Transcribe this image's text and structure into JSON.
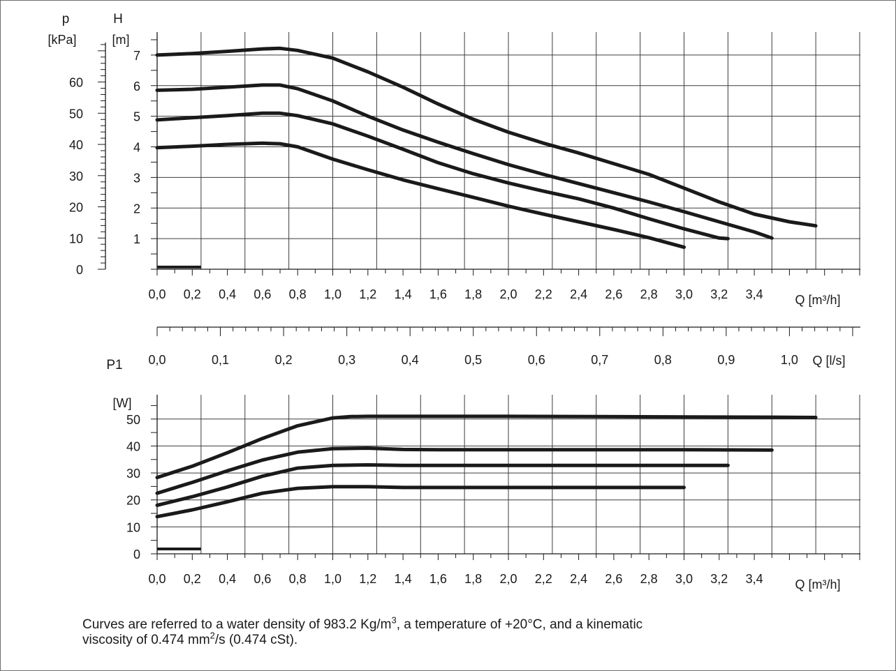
{
  "chart_data": [
    {
      "type": "line",
      "title": "",
      "left_axis_label": "p",
      "left_axis_unit": "[kPa]",
      "ylabel": "H",
      "ylabel_unit": "[m]",
      "xlabel": "Q [m³/h]",
      "xlim": [
        0,
        4.0
      ],
      "ylim": [
        0,
        7.75
      ],
      "p_lim": [
        0,
        76
      ],
      "x_ticks": [
        "0,0",
        "0,2",
        "0,4",
        "0,6",
        "0,8",
        "1,0",
        "1,2",
        "1,4",
        "1,6",
        "1,8",
        "2,0",
        "2,2",
        "2,4",
        "2,6",
        "2,8",
        "3,0",
        "3,2",
        "3,4"
      ],
      "y_ticks": [
        "1",
        "2",
        "3",
        "4",
        "5",
        "6",
        "7"
      ],
      "p_ticks": [
        "0",
        "10",
        "20",
        "30",
        "40",
        "50",
        "60"
      ],
      "grid": true,
      "series": [
        {
          "x": [
            0,
            0.2,
            0.4,
            0.6,
            0.7,
            0.8,
            1.0,
            1.2,
            1.4,
            1.6,
            1.8,
            2.0,
            2.2,
            2.4,
            2.6,
            2.8,
            3.0,
            3.2,
            3.4,
            3.6,
            3.75
          ],
          "values": [
            7.0,
            7.05,
            7.12,
            7.2,
            7.22,
            7.15,
            6.9,
            6.45,
            5.95,
            5.4,
            4.9,
            4.48,
            4.12,
            3.8,
            3.45,
            3.1,
            2.65,
            2.2,
            1.8,
            1.55,
            1.42
          ]
        },
        {
          "x": [
            0,
            0.2,
            0.4,
            0.6,
            0.7,
            0.8,
            1.0,
            1.2,
            1.4,
            1.6,
            1.8,
            2.0,
            2.2,
            2.4,
            2.6,
            2.8,
            3.0,
            3.2,
            3.4,
            3.5
          ],
          "values": [
            5.85,
            5.88,
            5.95,
            6.02,
            6.02,
            5.9,
            5.5,
            5.0,
            4.55,
            4.15,
            3.78,
            3.42,
            3.1,
            2.8,
            2.5,
            2.2,
            1.88,
            1.55,
            1.22,
            1.02
          ]
        },
        {
          "x": [
            0,
            0.2,
            0.4,
            0.6,
            0.7,
            0.8,
            1.0,
            1.2,
            1.4,
            1.6,
            1.8,
            2.0,
            2.2,
            2.4,
            2.6,
            2.8,
            3.0,
            3.2,
            3.25
          ],
          "values": [
            4.88,
            4.95,
            5.02,
            5.1,
            5.1,
            5.02,
            4.75,
            4.35,
            3.92,
            3.48,
            3.12,
            2.82,
            2.55,
            2.3,
            2.0,
            1.65,
            1.32,
            1.02,
            1.0
          ]
        },
        {
          "x": [
            0,
            0.2,
            0.4,
            0.6,
            0.7,
            0.8,
            1.0,
            1.2,
            1.4,
            1.6,
            1.8,
            2.0,
            2.2,
            2.4,
            2.6,
            2.8,
            3.0
          ],
          "values": [
            3.97,
            4.02,
            4.08,
            4.12,
            4.1,
            4.0,
            3.6,
            3.25,
            2.92,
            2.63,
            2.35,
            2.06,
            1.8,
            1.55,
            1.3,
            1.03,
            0.72
          ]
        }
      ],
      "min_marker": {
        "x": [
          0,
          0.25
        ],
        "values": [
          0.07,
          0.07
        ]
      }
    },
    {
      "type": "axis",
      "xlabel": "Q [l/s]",
      "xlim": [
        0,
        1.111
      ],
      "x_ticks": [
        "0,0",
        "0,1",
        "0,2",
        "0,3",
        "0,4",
        "0,5",
        "0,6",
        "0,7",
        "0,8",
        "0,9",
        "1,0"
      ]
    },
    {
      "type": "line",
      "title": "",
      "ylabel": "P1",
      "ylabel_unit": "[W]",
      "xlabel": "Q [m³/h]",
      "xlim": [
        0,
        4.0
      ],
      "ylim": [
        0,
        59
      ],
      "x_ticks": [
        "0,0",
        "0,2",
        "0,4",
        "0,6",
        "0,8",
        "1,0",
        "1,2",
        "1,4",
        "1,6",
        "1,8",
        "2,0",
        "2,2",
        "2,4",
        "2,6",
        "2,8",
        "3,0",
        "3,2",
        "3,4"
      ],
      "y_ticks": [
        "0",
        "10",
        "20",
        "30",
        "40",
        "50"
      ],
      "grid": true,
      "series": [
        {
          "x": [
            0,
            0.2,
            0.4,
            0.6,
            0.8,
            1.0,
            1.1,
            1.2,
            1.4,
            1.6,
            2.0,
            2.5,
            3.0,
            3.5,
            3.75
          ],
          "values": [
            28.3,
            32.5,
            37.5,
            42.8,
            47.5,
            50.4,
            50.9,
            51.0,
            51.0,
            51.0,
            51.0,
            50.9,
            50.8,
            50.7,
            50.6
          ]
        },
        {
          "x": [
            0,
            0.2,
            0.4,
            0.6,
            0.8,
            1.0,
            1.2,
            1.4,
            1.6,
            2.0,
            2.5,
            3.0,
            3.5
          ],
          "values": [
            22.5,
            26.5,
            30.8,
            34.8,
            37.7,
            39.0,
            39.2,
            38.7,
            38.6,
            38.6,
            38.6,
            38.6,
            38.5
          ]
        },
        {
          "x": [
            0,
            0.2,
            0.4,
            0.6,
            0.8,
            1.0,
            1.2,
            1.4,
            1.6,
            2.0,
            2.5,
            3.0,
            3.25
          ],
          "values": [
            18.0,
            21.2,
            24.8,
            28.8,
            31.8,
            32.8,
            33.0,
            32.8,
            32.8,
            32.8,
            32.8,
            32.8,
            32.8
          ]
        },
        {
          "x": [
            0,
            0.2,
            0.4,
            0.6,
            0.8,
            1.0,
            1.2,
            1.4,
            1.6,
            2.0,
            2.5,
            3.0
          ],
          "values": [
            13.8,
            16.3,
            19.3,
            22.5,
            24.3,
            24.9,
            24.9,
            24.6,
            24.6,
            24.6,
            24.6,
            24.6
          ]
        }
      ],
      "min_marker": {
        "x": [
          0,
          0.25
        ],
        "values": [
          1.8,
          1.8
        ]
      }
    }
  ],
  "footnote": {
    "line1_a": "Curves are referred to a water density of 983.2 Kg/m",
    "line1_sup": "3",
    "line1_b": ", a temperature of +20°C, and a kinematic",
    "line2_a": "viscosity of 0.474 mm",
    "line2_sup": "2",
    "line2_b": "/s (0.474 cSt)."
  },
  "colors": {
    "curve": "#1a1a1a",
    "grid": "#3c3c3c",
    "frame": "#6e6e6e"
  }
}
